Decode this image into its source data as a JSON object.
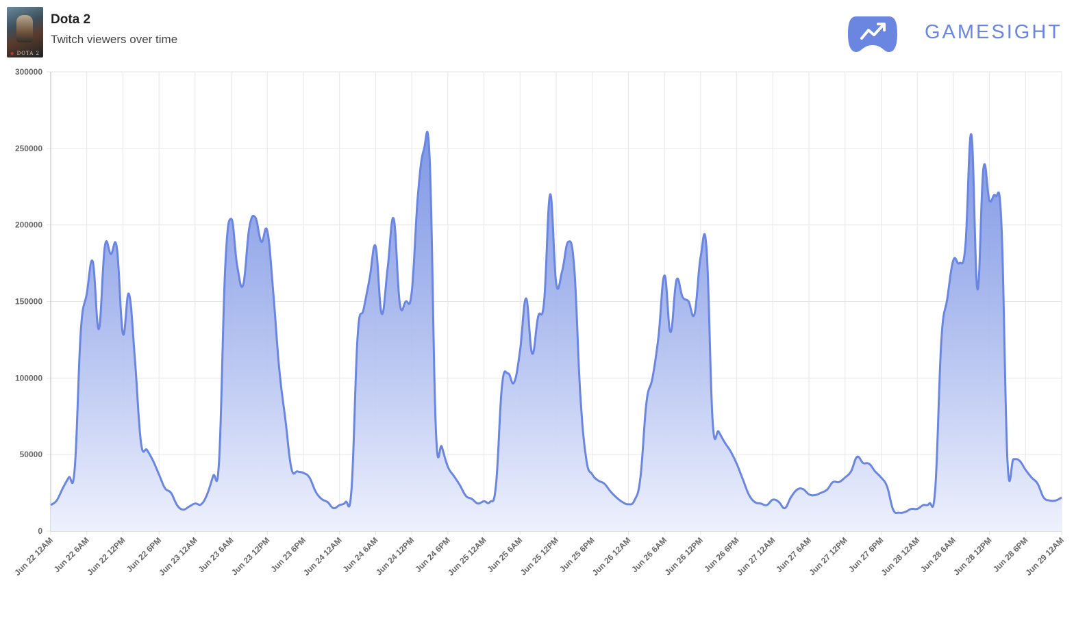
{
  "header": {
    "game_title": "Dota 2",
    "subtitle": "Twitch viewers over time",
    "thumbnail_caption": "DOTA 2",
    "brand": "GAMESIGHT"
  },
  "colors": {
    "line": "#6a86e0",
    "fill_top": "#6a86e0",
    "fill_bottom": "#eef1fd",
    "grid": "#e6e6e6",
    "axis": "#bbbbbb",
    "brand": "#6a86e0"
  },
  "icons": [
    "game-thumbnail",
    "gamepad-trend-icon"
  ],
  "chart_data": {
    "type": "area",
    "title": "",
    "xlabel": "",
    "ylabel": "",
    "ylim": [
      0,
      300000
    ],
    "y_ticks": [
      "0",
      "50000",
      "100000",
      "150000",
      "200000",
      "250000",
      "300000"
    ],
    "x_range_hours": [
      0,
      168
    ],
    "x_ticks": [
      "Jun 22 12AM",
      "Jun 22 6AM",
      "Jun 22 12PM",
      "Jun 22 6PM",
      "Jun 23 12AM",
      "Jun 23 6AM",
      "Jun 23 12PM",
      "Jun 23 6PM",
      "Jun 24 12AM",
      "Jun 24 6AM",
      "Jun 24 12PM",
      "Jun 24 6PM",
      "Jun 25 12AM",
      "Jun 25 6AM",
      "Jun 25 12PM",
      "Jun 25 6PM",
      "Jun 26 12AM",
      "Jun 26 6AM",
      "Jun 26 12PM",
      "Jun 26 6PM",
      "Jun 27 12AM",
      "Jun 27 6AM",
      "Jun 27 12PM",
      "Jun 27 6PM",
      "Jun 28 12AM",
      "Jun 28 6AM",
      "Jun 28 12PM",
      "Jun 28 6PM",
      "Jun 29 12AM"
    ],
    "grid": true,
    "legend": "none",
    "series": [
      {
        "points": [
          [
            0,
            17000
          ],
          [
            1,
            20000
          ],
          [
            2,
            28000
          ],
          [
            3,
            35000
          ],
          [
            4,
            41000
          ],
          [
            5,
            130000
          ],
          [
            6,
            155000
          ],
          [
            7,
            176000
          ],
          [
            8,
            132000
          ],
          [
            9,
            186000
          ],
          [
            10,
            181000
          ],
          [
            11,
            185000
          ],
          [
            12,
            129000
          ],
          [
            13,
            155000
          ],
          [
            14,
            112000
          ],
          [
            15,
            58000
          ],
          [
            16,
            53000
          ],
          [
            17,
            46000
          ],
          [
            18,
            37000
          ],
          [
            19,
            28000
          ],
          [
            20,
            25000
          ],
          [
            21,
            17000
          ],
          [
            22,
            14000
          ],
          [
            23,
            16000
          ],
          [
            24,
            18000
          ],
          [
            25,
            17500
          ],
          [
            26,
            24000
          ],
          [
            27,
            36000
          ],
          [
            28,
            47000
          ],
          [
            29,
            172000
          ],
          [
            30,
            204000
          ],
          [
            31,
            173000
          ],
          [
            32,
            161000
          ],
          [
            33,
            198000
          ],
          [
            34,
            205000
          ],
          [
            35,
            189000
          ],
          [
            36,
            196000
          ],
          [
            37,
            155000
          ],
          [
            38,
            105000
          ],
          [
            39,
            73000
          ],
          [
            40,
            41000
          ],
          [
            41,
            39000
          ],
          [
            42,
            38000
          ],
          [
            43,
            35000
          ],
          [
            44,
            26000
          ],
          [
            45,
            21000
          ],
          [
            46,
            19000
          ],
          [
            47,
            15000
          ],
          [
            48,
            17000
          ],
          [
            49,
            19000
          ],
          [
            50,
            28000
          ],
          [
            51,
            127000
          ],
          [
            52,
            145000
          ],
          [
            53,
            165000
          ],
          [
            54,
            186000
          ],
          [
            55,
            142000
          ],
          [
            56,
            172000
          ],
          [
            57,
            204000
          ],
          [
            58,
            149000
          ],
          [
            59,
            150000
          ],
          [
            60,
            156000
          ],
          [
            61,
            218000
          ],
          [
            62,
            249000
          ],
          [
            63,
            241000
          ],
          [
            64,
            67000
          ],
          [
            65,
            55000
          ],
          [
            66,
            42000
          ],
          [
            67,
            36000
          ],
          [
            68,
            30000
          ],
          [
            69,
            23000
          ],
          [
            70,
            21000
          ],
          [
            71,
            18000
          ],
          [
            72,
            19500
          ],
          [
            73,
            19000
          ],
          [
            74,
            30000
          ],
          [
            75,
            95000
          ],
          [
            76,
            103000
          ],
          [
            77,
            97000
          ],
          [
            78,
            118000
          ],
          [
            79,
            152000
          ],
          [
            80,
            116000
          ],
          [
            81,
            140000
          ],
          [
            82,
            150000
          ],
          [
            83,
            220000
          ],
          [
            84,
            162000
          ],
          [
            85,
            170000
          ],
          [
            86,
            189000
          ],
          [
            87,
            172000
          ],
          [
            88,
            90000
          ],
          [
            89,
            47000
          ],
          [
            90,
            37000
          ],
          [
            91,
            33000
          ],
          [
            92,
            31000
          ],
          [
            93,
            26000
          ],
          [
            94,
            22000
          ],
          [
            95,
            19000
          ],
          [
            96,
            17500
          ],
          [
            97,
            20000
          ],
          [
            98,
            35000
          ],
          [
            99,
            84000
          ],
          [
            100,
            100000
          ],
          [
            101,
            127000
          ],
          [
            102,
            167000
          ],
          [
            103,
            130000
          ],
          [
            104,
            164000
          ],
          [
            105,
            153000
          ],
          [
            106,
            150000
          ],
          [
            107,
            142000
          ],
          [
            108,
            179000
          ],
          [
            109,
            184000
          ],
          [
            110,
            72000
          ],
          [
            111,
            65000
          ],
          [
            112,
            58000
          ],
          [
            113,
            52000
          ],
          [
            114,
            44000
          ],
          [
            115,
            34000
          ],
          [
            116,
            24000
          ],
          [
            117,
            19000
          ],
          [
            118,
            18000
          ],
          [
            119,
            17000
          ],
          [
            120,
            20500
          ],
          [
            121,
            19000
          ],
          [
            122,
            15000
          ],
          [
            123,
            22000
          ],
          [
            124,
            27000
          ],
          [
            125,
            27500
          ],
          [
            126,
            24000
          ],
          [
            127,
            23500
          ],
          [
            128,
            25000
          ],
          [
            129,
            27000
          ],
          [
            130,
            32000
          ],
          [
            131,
            32000
          ],
          [
            132,
            35000
          ],
          [
            133,
            39000
          ],
          [
            134,
            48500
          ],
          [
            135,
            44500
          ],
          [
            136,
            44000
          ],
          [
            137,
            39000
          ],
          [
            138,
            35000
          ],
          [
            139,
            29000
          ],
          [
            140,
            14000
          ],
          [
            141,
            12000
          ],
          [
            142,
            12500
          ],
          [
            143,
            14500
          ],
          [
            144,
            14500
          ],
          [
            145,
            17000
          ],
          [
            146,
            18000
          ],
          [
            147,
            28000
          ],
          [
            148,
            124000
          ],
          [
            149,
            152000
          ],
          [
            150,
            177000
          ],
          [
            151,
            175000
          ],
          [
            152,
            186000
          ],
          [
            153,
            259000
          ],
          [
            154,
            158000
          ],
          [
            155,
            237000
          ],
          [
            156,
            216000
          ],
          [
            157,
            219000
          ],
          [
            158,
            200000
          ],
          [
            159,
            46000
          ],
          [
            160,
            47000
          ],
          [
            161,
            46000
          ],
          [
            162,
            40000
          ],
          [
            163,
            35000
          ],
          [
            164,
            31000
          ],
          [
            165,
            22000
          ],
          [
            166,
            20000
          ],
          [
            167,
            20000
          ],
          [
            168,
            22000
          ]
        ]
      }
    ]
  }
}
